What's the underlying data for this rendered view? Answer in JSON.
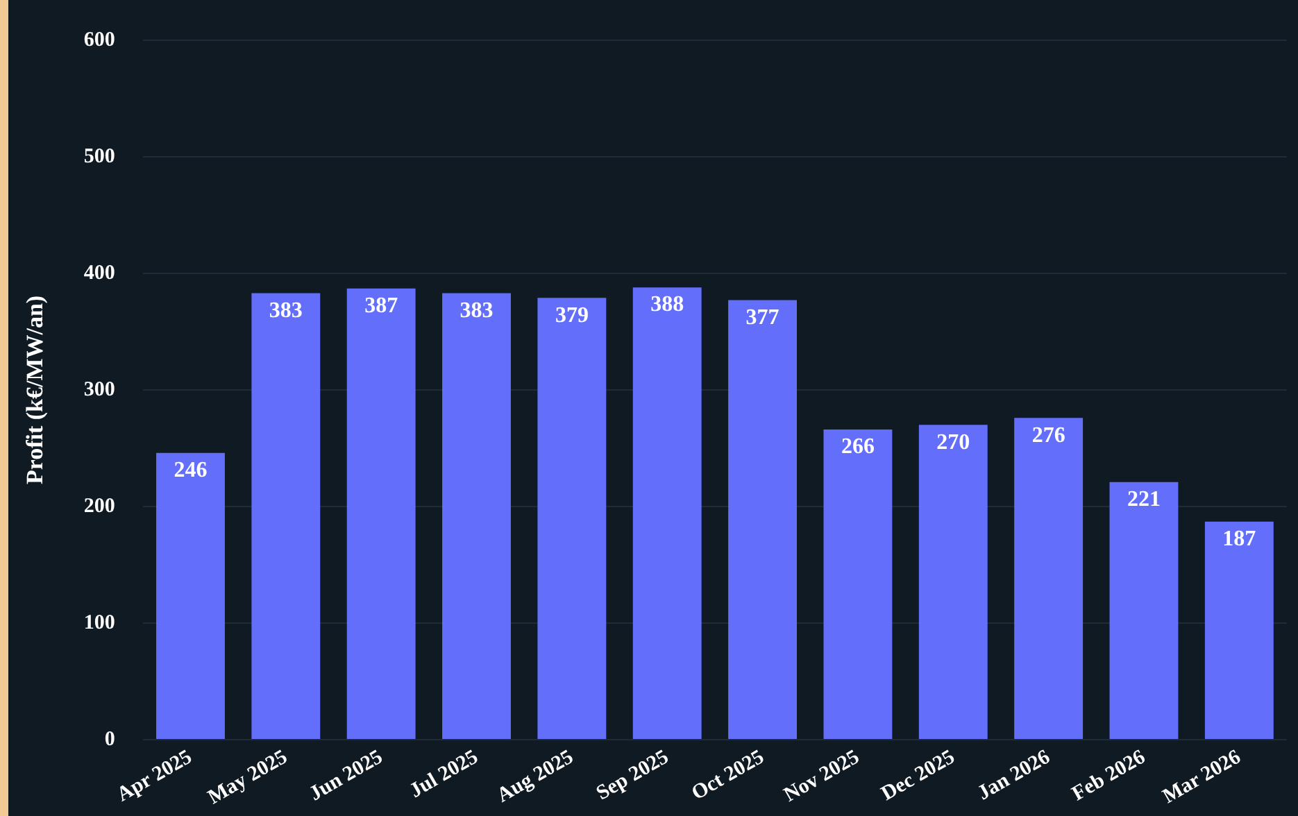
{
  "chart_data": {
    "type": "bar",
    "ylabel": "Profit (k€/MW/an)",
    "categories": [
      "Apr 2025",
      "May 2025",
      "Jun 2025",
      "Jul 2025",
      "Aug 2025",
      "Sep 2025",
      "Oct 2025",
      "Nov 2025",
      "Dec 2025",
      "Jan 2026",
      "Feb 2026",
      "Mar 2026"
    ],
    "values": [
      246,
      383,
      387,
      383,
      379,
      388,
      377,
      266,
      270,
      276,
      221,
      187
    ],
    "color": "#636efa",
    "ylim": [
      0,
      600
    ],
    "yticks": [
      0,
      100,
      200,
      300,
      400,
      500,
      600
    ],
    "grid": "y",
    "data_labels": true
  }
}
